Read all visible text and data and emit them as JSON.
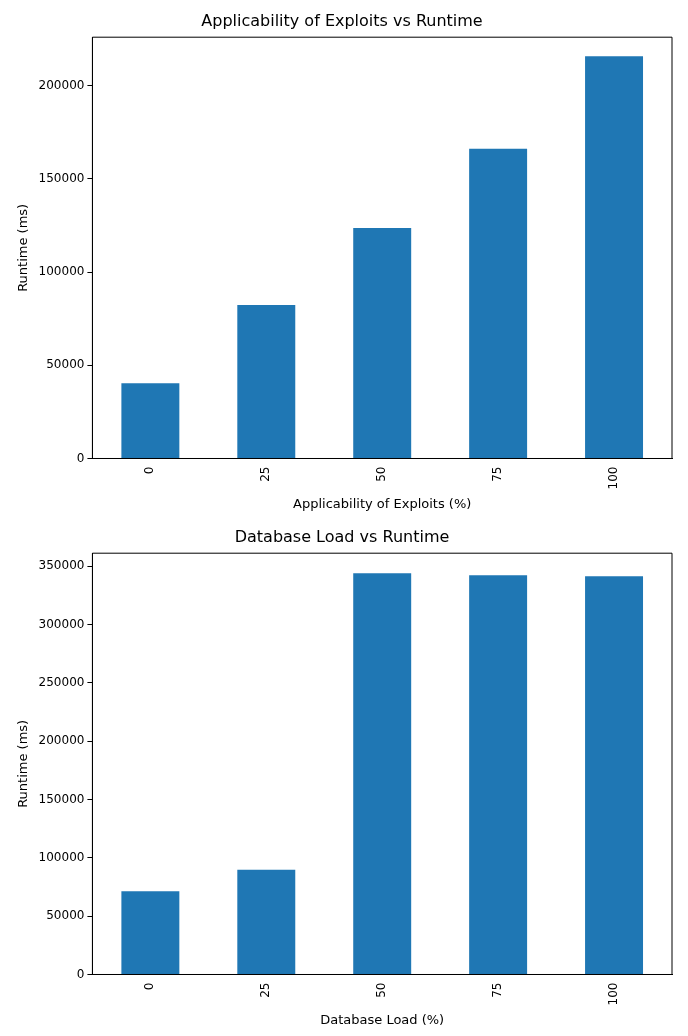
{
  "chart_data": [
    {
      "type": "bar",
      "title": "Applicability of Exploits vs Runtime",
      "xlabel": "Applicability of Exploits (%)",
      "ylabel": "Runtime (ms)",
      "categories": [
        "0",
        "25",
        "50",
        "75",
        "100"
      ],
      "values": [
        40300,
        82300,
        123700,
        166200,
        215800
      ],
      "color": "#1f77b4",
      "ylim": [
        0,
        226000
      ],
      "yticks": [
        0,
        50000,
        100000,
        150000,
        200000
      ],
      "grid": false,
      "legend": false
    },
    {
      "type": "bar",
      "title": "Database Load vs Runtime",
      "xlabel": "Database Load (%)",
      "ylabel": "Runtime (ms)",
      "categories": [
        "0",
        "25",
        "50",
        "75",
        "100"
      ],
      "values": [
        71400,
        89700,
        343900,
        342100,
        341300
      ],
      "color": "#1f77b4",
      "ylim": [
        0,
        361000
      ],
      "yticks": [
        0,
        50000,
        100000,
        150000,
        200000,
        250000,
        300000,
        350000
      ],
      "grid": false,
      "legend": false
    }
  ]
}
